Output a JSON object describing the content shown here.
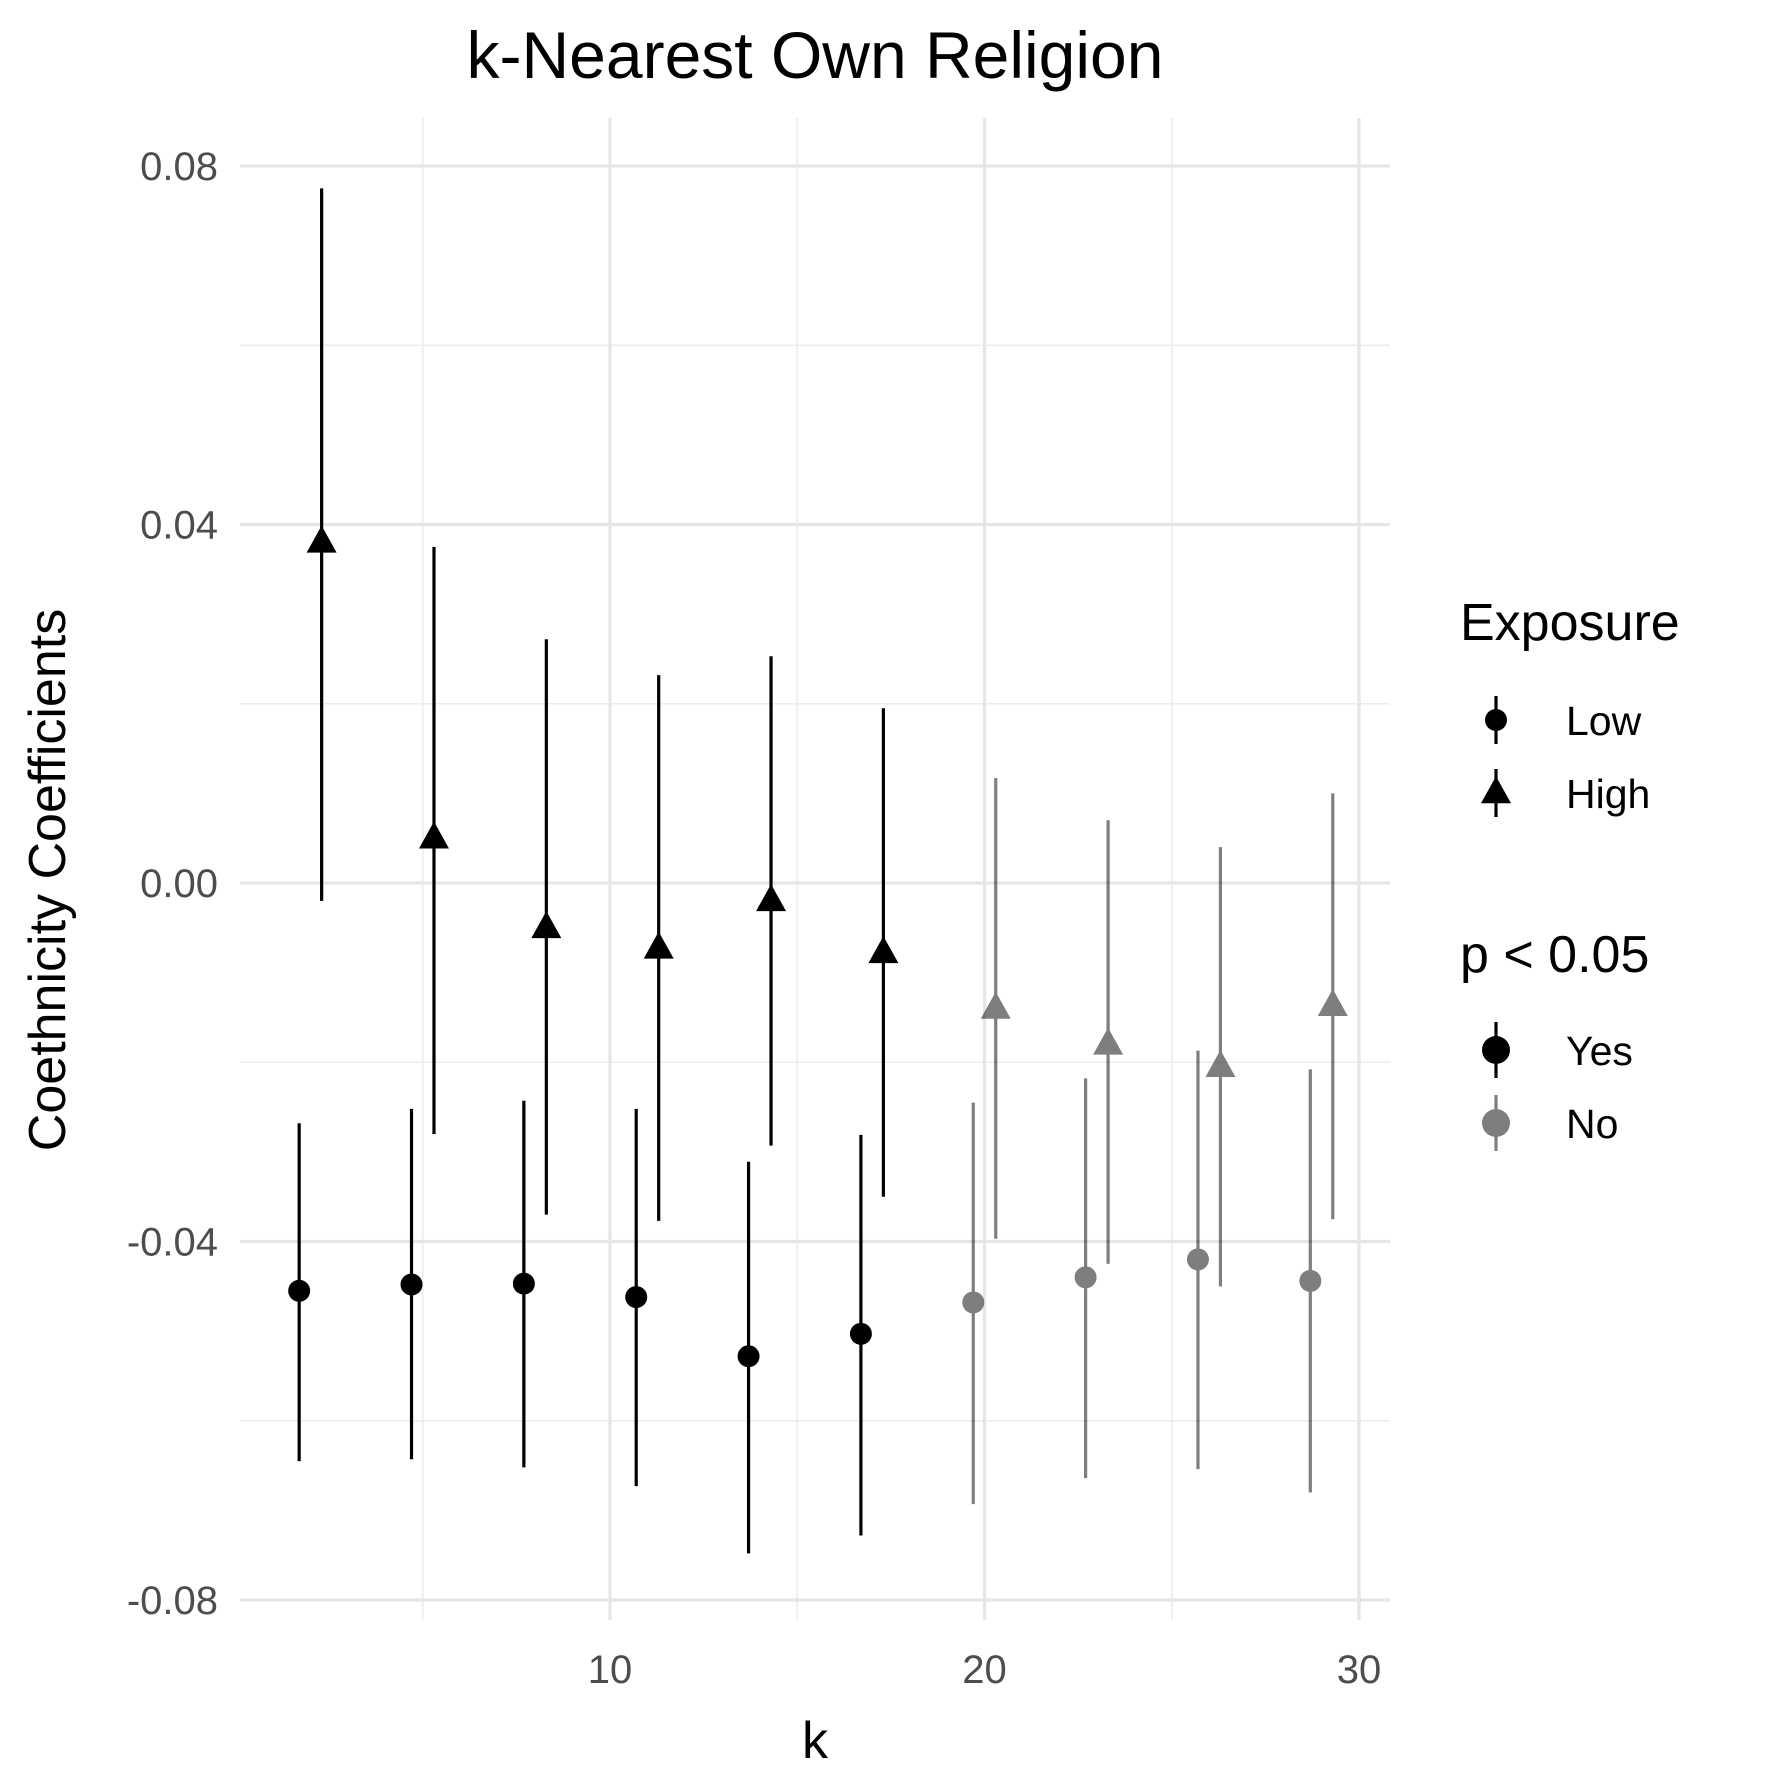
{
  "chart_data": {
    "type": "scatter",
    "title": "k-Nearest Own Religion",
    "xlabel": "k",
    "ylabel": "Coethnicity Coefficients",
    "xlim": [
      0,
      31
    ],
    "ylim": [
      -0.083,
      0.083
    ],
    "x_ticks": [
      10,
      20,
      30
    ],
    "x_tick_labels": [
      "10",
      "20",
      "30"
    ],
    "x_minor_ticks": [
      5,
      15,
      25
    ],
    "y_ticks": [
      -0.08,
      -0.04,
      0.0,
      0.04,
      0.08
    ],
    "y_tick_labels": [
      "-0.08",
      "-0.04",
      "0.00",
      "0.04",
      "0.08"
    ],
    "y_minor_ticks": [
      -0.06,
      -0.02,
      0.02,
      0.06
    ],
    "grid": true,
    "legend_position": "right",
    "legends": [
      {
        "title": "Exposure",
        "entries": [
          {
            "label": "Low",
            "shape": "circle"
          },
          {
            "label": "High",
            "shape": "triangle"
          }
        ]
      },
      {
        "title": "p < 0.05",
        "entries": [
          {
            "label": "Yes",
            "alpha": 1.0
          },
          {
            "label": "No",
            "alpha": 0.5
          }
        ]
      }
    ],
    "colors": {
      "Yes": "#000000",
      "No": "#808080"
    },
    "series": [
      {
        "name": "Low",
        "shape": "circle",
        "points": [
          {
            "k": 1.7,
            "estimate": -0.0455,
            "lower": -0.0645,
            "upper": -0.0268,
            "significant": "Yes"
          },
          {
            "k": 4.7,
            "estimate": -0.0448,
            "lower": -0.0643,
            "upper": -0.0252,
            "significant": "Yes"
          },
          {
            "k": 7.7,
            "estimate": -0.0447,
            "lower": -0.0652,
            "upper": -0.0243,
            "significant": "Yes"
          },
          {
            "k": 10.7,
            "estimate": -0.0462,
            "lower": -0.0673,
            "upper": -0.0252,
            "significant": "Yes"
          },
          {
            "k": 13.7,
            "estimate": -0.0528,
            "lower": -0.0748,
            "upper": -0.0311,
            "significant": "Yes"
          },
          {
            "k": 16.7,
            "estimate": -0.0503,
            "lower": -0.0728,
            "upper": -0.0281,
            "significant": "Yes"
          },
          {
            "k": 19.7,
            "estimate": -0.0468,
            "lower": -0.0693,
            "upper": -0.0245,
            "significant": "No"
          },
          {
            "k": 22.7,
            "estimate": -0.044,
            "lower": -0.0664,
            "upper": -0.0218,
            "significant": "No"
          },
          {
            "k": 25.7,
            "estimate": -0.042,
            "lower": -0.0654,
            "upper": -0.0187,
            "significant": "No"
          },
          {
            "k": 28.7,
            "estimate": -0.0444,
            "lower": -0.068,
            "upper": -0.0208,
            "significant": "No"
          }
        ]
      },
      {
        "name": "High",
        "shape": "triangle",
        "points": [
          {
            "k": 2.3,
            "estimate": 0.038,
            "lower": -0.002,
            "upper": 0.0775,
            "significant": "Yes"
          },
          {
            "k": 5.3,
            "estimate": 0.005,
            "lower": -0.028,
            "upper": 0.0375,
            "significant": "Yes"
          },
          {
            "k": 8.3,
            "estimate": -0.005,
            "lower": -0.037,
            "upper": 0.0272,
            "significant": "Yes"
          },
          {
            "k": 11.3,
            "estimate": -0.0073,
            "lower": -0.0377,
            "upper": 0.0232,
            "significant": "Yes"
          },
          {
            "k": 14.3,
            "estimate": -0.002,
            "lower": -0.0293,
            "upper": 0.0253,
            "significant": "Yes"
          },
          {
            "k": 17.3,
            "estimate": -0.0078,
            "lower": -0.035,
            "upper": 0.0195,
            "significant": "Yes"
          },
          {
            "k": 20.3,
            "estimate": -0.014,
            "lower": -0.0397,
            "upper": 0.0117,
            "significant": "No"
          },
          {
            "k": 23.3,
            "estimate": -0.018,
            "lower": -0.0425,
            "upper": 0.007,
            "significant": "No"
          },
          {
            "k": 26.3,
            "estimate": -0.0205,
            "lower": -0.045,
            "upper": 0.004,
            "significant": "No"
          },
          {
            "k": 29.3,
            "estimate": -0.0137,
            "lower": -0.0375,
            "upper": 0.01,
            "significant": "No"
          }
        ]
      }
    ]
  }
}
